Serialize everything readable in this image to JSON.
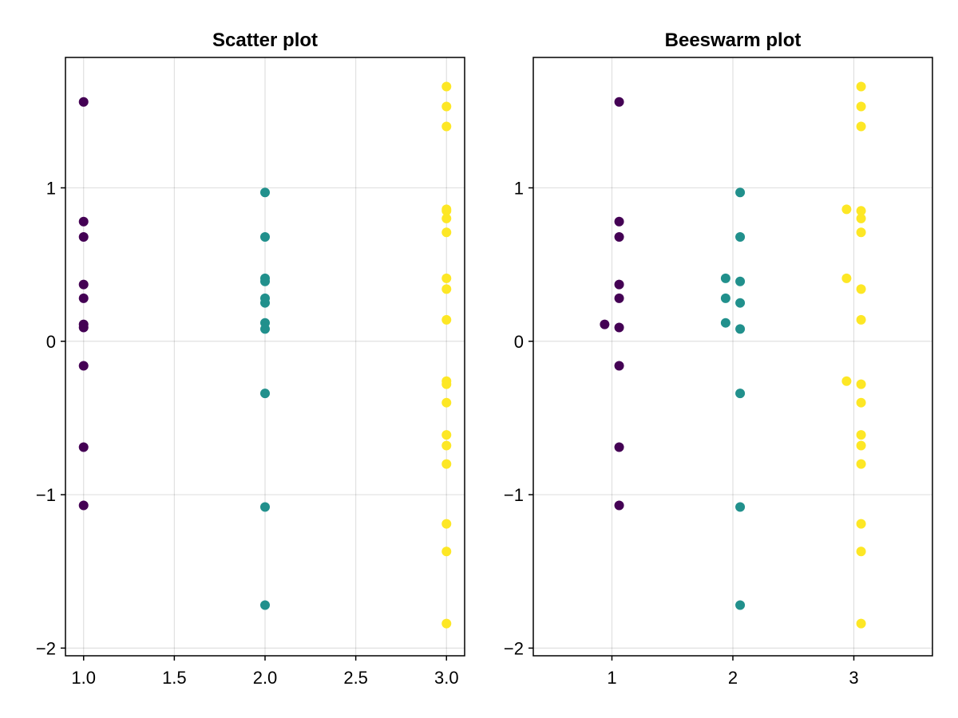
{
  "chart_data": [
    {
      "type": "scatter",
      "title": "Scatter plot",
      "xlabel": "",
      "ylabel": "",
      "xlim": [
        0.9,
        3.1
      ],
      "ylim": [
        -2.05,
        1.85
      ],
      "xticks": [
        1.0,
        1.5,
        2.0,
        2.5,
        3.0
      ],
      "xtick_labels": [
        "1.0",
        "1.5",
        "2.0",
        "2.5",
        "3.0"
      ],
      "yticks": [
        -2,
        -1,
        0,
        1
      ],
      "ytick_labels": [
        "−2",
        "−1",
        "0",
        "1"
      ],
      "grid": true,
      "series": [
        {
          "color": "#440154",
          "points": [
            [
              1,
              1.56
            ],
            [
              1,
              0.78
            ],
            [
              1,
              0.68
            ],
            [
              1,
              0.37
            ],
            [
              1,
              0.28
            ],
            [
              1,
              0.11
            ],
            [
              1,
              0.09
            ],
            [
              1,
              -0.16
            ],
            [
              1,
              -0.69
            ],
            [
              1,
              -1.07
            ]
          ]
        },
        {
          "color": "#21908C",
          "points": [
            [
              2,
              0.97
            ],
            [
              2,
              0.68
            ],
            [
              2,
              0.41
            ],
            [
              2,
              0.39
            ],
            [
              2,
              0.28
            ],
            [
              2,
              0.25
            ],
            [
              2,
              0.12
            ],
            [
              2,
              0.08
            ],
            [
              2,
              -0.34
            ],
            [
              2,
              -1.08
            ],
            [
              2,
              -1.72
            ]
          ]
        },
        {
          "color": "#FDE725",
          "points": [
            [
              3,
              1.66
            ],
            [
              3,
              1.53
            ],
            [
              3,
              1.4
            ],
            [
              3,
              0.86
            ],
            [
              3,
              0.85
            ],
            [
              3,
              0.8
            ],
            [
              3,
              0.71
            ],
            [
              3,
              0.41
            ],
            [
              3,
              0.34
            ],
            [
              3,
              0.14
            ],
            [
              3,
              -0.26
            ],
            [
              3,
              -0.28
            ],
            [
              3,
              -0.4
            ],
            [
              3,
              -0.61
            ],
            [
              3,
              -0.68
            ],
            [
              3,
              -0.8
            ],
            [
              3,
              -1.19
            ],
            [
              3,
              -1.37
            ],
            [
              3,
              -1.84
            ]
          ]
        }
      ]
    },
    {
      "type": "scatter",
      "title": "Beeswarm plot",
      "xlabel": "",
      "ylabel": "",
      "xlim": [
        0.35,
        3.65
      ],
      "ylim": [
        -2.05,
        1.85
      ],
      "xticks": [
        1,
        2,
        3
      ],
      "xtick_labels": [
        "1",
        "2",
        "3"
      ],
      "yticks": [
        -2,
        -1,
        0,
        1
      ],
      "ytick_labels": [
        "−2",
        "−1",
        "0",
        "1"
      ],
      "grid": true,
      "series": [
        {
          "color": "#440154",
          "points": [
            [
              1.06,
              1.56
            ],
            [
              1.06,
              0.78
            ],
            [
              1.06,
              0.68
            ],
            [
              1.06,
              0.37
            ],
            [
              1.06,
              0.28
            ],
            [
              0.94,
              0.11
            ],
            [
              1.06,
              0.09
            ],
            [
              1.06,
              -0.16
            ],
            [
              1.06,
              -0.69
            ],
            [
              1.06,
              -1.07
            ]
          ]
        },
        {
          "color": "#21908C",
          "points": [
            [
              2.06,
              0.97
            ],
            [
              2.06,
              0.68
            ],
            [
              1.94,
              0.41
            ],
            [
              2.06,
              0.39
            ],
            [
              1.94,
              0.28
            ],
            [
              2.06,
              0.25
            ],
            [
              1.94,
              0.12
            ],
            [
              2.06,
              0.08
            ],
            [
              2.06,
              -0.34
            ],
            [
              2.06,
              -1.08
            ],
            [
              2.06,
              -1.72
            ]
          ]
        },
        {
          "color": "#FDE725",
          "points": [
            [
              3.06,
              1.66
            ],
            [
              3.06,
              1.53
            ],
            [
              3.06,
              1.4
            ],
            [
              2.94,
              0.86
            ],
            [
              3.06,
              0.85
            ],
            [
              3.06,
              0.8
            ],
            [
              3.06,
              0.71
            ],
            [
              2.94,
              0.41
            ],
            [
              3.06,
              0.34
            ],
            [
              3.06,
              0.14
            ],
            [
              2.94,
              -0.26
            ],
            [
              3.06,
              -0.28
            ],
            [
              3.06,
              -0.4
            ],
            [
              3.06,
              -0.61
            ],
            [
              3.06,
              -0.68
            ],
            [
              3.06,
              -0.8
            ],
            [
              3.06,
              -1.19
            ],
            [
              3.06,
              -1.37
            ],
            [
              3.06,
              -1.84
            ]
          ]
        }
      ]
    }
  ]
}
